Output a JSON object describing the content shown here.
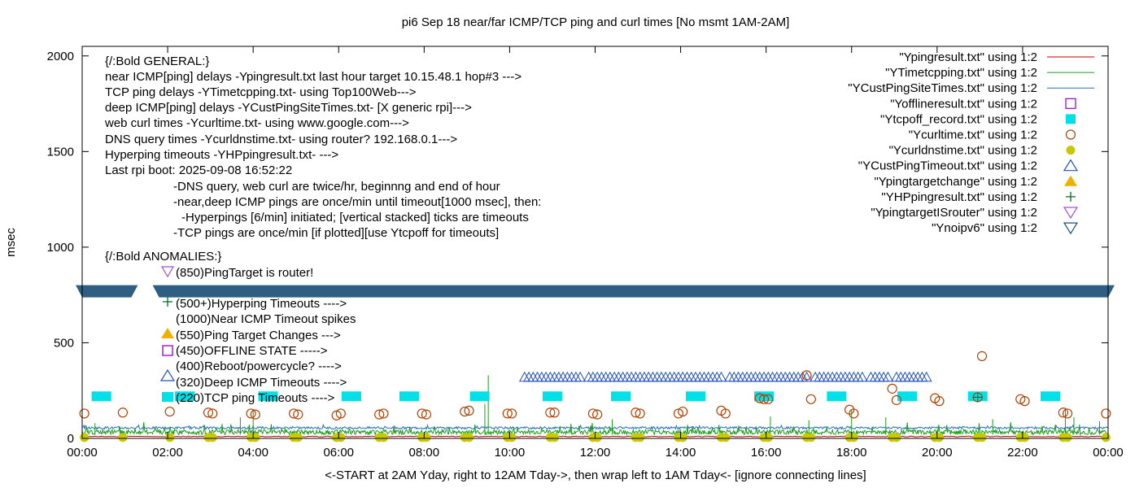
{
  "chart_data": {
    "type": "scatter",
    "title": "pi6 Sep 18  near/far ICMP/TCP ping and curl times [No msmt 1AM-2AM]",
    "xlabel": "<-START at 2AM Yday, right to 12AM Tday->, then wrap left to 1AM Tday<- [ignore connecting lines]",
    "ylabel": "msec",
    "xlim": [
      0,
      24
    ],
    "ylim": [
      0,
      2050
    ],
    "x_ticks": [
      "00:00",
      "02:00",
      "04:00",
      "06:00",
      "08:00",
      "10:00",
      "12:00",
      "14:00",
      "16:00",
      "18:00",
      "20:00",
      "22:00",
      "00:00"
    ],
    "y_ticks": [
      0,
      500,
      1000,
      1500,
      2000
    ],
    "grid": false,
    "legend_position": "top-right",
    "colors": {
      "ypingresult": "#c00000",
      "ytimetcpping": "#1a9e1a",
      "ycustpingsitetimes": "#1f6fc4",
      "yofflineresult": "#9400d3",
      "ytcpoff": "#00e0e8",
      "ycurltime": "#b24000",
      "ycurldnstime": "#c8c800",
      "ycustpingtimeout": "#2050c0",
      "ypingtargetchange": "#f0b000",
      "yhppingresult": "#007020",
      "ypingtargetisrouter": "#a050e0",
      "ynoipv6": "#1a4f80",
      "band": "#2e5f82"
    },
    "legend": [
      {
        "label": "\"Ypingresult.txt\" using 1:2",
        "marker": "line",
        "color_key": "ypingresult"
      },
      {
        "label": "\"YTimetcpping.txt\" using 1:2",
        "marker": "line",
        "color_key": "ytimetcpping"
      },
      {
        "label": "\"YCustPingSiteTimes.txt\" using 1:2",
        "marker": "line",
        "color_key": "ycustpingsitetimes"
      },
      {
        "label": "\"Yofflineresult.txt\" using 1:2",
        "marker": "open-square",
        "color_key": "yofflineresult"
      },
      {
        "label": "\"Ytcpoff_record.txt\" using 1:2",
        "marker": "filled-square",
        "color_key": "ytcpoff"
      },
      {
        "label": "\"Ycurltime.txt\" using 1:2",
        "marker": "open-circle",
        "color_key": "ycurltime"
      },
      {
        "label": "\"Ycurldnstime.txt\" using 1:2",
        "marker": "filled-circle",
        "color_key": "ycurldnstime"
      },
      {
        "label": "\"YCustPingTimeout.txt\" using 1:2",
        "marker": "open-triangle",
        "color_key": "ycustpingtimeout"
      },
      {
        "label": "\"Ypingtargetchange\" using 1:2",
        "marker": "filled-triangle",
        "color_key": "ypingtargetchange"
      },
      {
        "label": "\"YHPpingresult.txt\" using 1:2",
        "marker": "plus",
        "color_key": "yhppingresult"
      },
      {
        "label": "\"YpingtargetISrouter\" using 1:2",
        "marker": "open-down-triangle",
        "color_key": "ypingtargetisrouter"
      },
      {
        "label": "\"Ynoipv6\" using 1:2",
        "marker": "open-down-triangle",
        "color_key": "ynoipv6"
      }
    ],
    "annotations": [
      "{/:Bold GENERAL:}",
      "near ICMP[ping] delays -Ypingresult.txt last hour target 10.15.48.1 hop#3 --->",
      "TCP ping delays -YTimetcpping.txt- using Top100Web--->",
      "deep ICMP[ping] delays -YCustPingSiteTimes.txt- [X generic rpi]--->",
      "web curl times -Ycurltime.txt- using www.google.com--->",
      "DNS query times -Ycurldnstime.txt- using router? 192.168.0.1--->",
      "Hyperping timeouts -YHPpingresult.txt- --->",
      "Last rpi boot: 2025-09-08 16:52:22",
      "-DNS query, web curl are twice/hr, beginnng and end of hour",
      "-near,deep ICMP pings are once/min until timeout[1000 msec], then:",
      "-Hyperpings [6/min] initiated; [vertical stacked] ticks are timeouts",
      "-TCP pings are once/min [if plotted][use Ytcpoff for timeouts]",
      "{/:Bold ANOMALIES:}",
      "(850)PingTarget is router!",
      "(500+)Hyperping Timeouts ---->",
      "(1000)Near ICMP Timeout spikes",
      "(550)Ping Target Changes --->",
      "(450)OFFLINE STATE ----->",
      "(400)Reboot/powercycle? ---->",
      "(320)Deep ICMP Timeouts ---->",
      "(220)TCP ping Timeouts ---->"
    ],
    "ynoipv6": {
      "x_start": 0,
      "x_end": 24,
      "y": 780,
      "gap": [
        1.15,
        1.8
      ]
    },
    "ytcpoff": {
      "y": 220,
      "x": [
        0.45,
        2.4,
        4.35,
        6.3,
        7.65,
        9.3,
        11.0,
        12.6,
        14.35,
        15.95,
        17.65,
        19.3,
        20.95,
        22.65
      ]
    },
    "ycustpingtimeout": {
      "y": 320,
      "x_start": 10.35,
      "x_end": 19.75,
      "step": 0.1,
      "skip": [
        [
          11.7,
          11.8
        ],
        [
          15.0,
          15.1
        ],
        [
          17.0,
          17.1
        ],
        [
          18.3,
          18.4
        ],
        [
          18.9,
          19.05
        ]
      ]
    },
    "ycurltime": {
      "x": [
        0.05,
        0.95,
        2.05,
        2.95,
        3.05,
        3.95,
        4.05,
        4.95,
        5.05,
        5.95,
        6.05,
        6.95,
        7.05,
        7.95,
        8.05,
        8.95,
        9.05,
        9.95,
        10.05,
        10.95,
        11.05,
        11.95,
        12.05,
        12.95,
        13.05,
        13.95,
        14.05,
        14.95,
        15.05,
        15.85,
        15.95,
        16.05,
        16.95,
        17.05,
        17.95,
        18.05,
        18.95,
        19.05,
        19.95,
        20.05,
        20.95,
        21.05,
        21.95,
        22.05,
        22.95,
        23.05,
        23.95
      ],
      "y": [
        130,
        135,
        140,
        135,
        130,
        130,
        125,
        130,
        125,
        120,
        130,
        125,
        130,
        130,
        125,
        140,
        145,
        130,
        130,
        135,
        135,
        130,
        125,
        135,
        130,
        130,
        140,
        145,
        130,
        210,
        205,
        205,
        330,
        205,
        150,
        130,
        260,
        200,
        210,
        195,
        215,
        430,
        205,
        195,
        135,
        130,
        130
      ]
    },
    "ycurldnstime": {
      "x": [
        0.05,
        0.95,
        2.05,
        2.95,
        3.05,
        3.95,
        4.05,
        4.95,
        5.05,
        5.95,
        6.05,
        6.95,
        7.05,
        7.95,
        8.05,
        8.95,
        9.05,
        9.95,
        10.05,
        10.95,
        11.05,
        11.95,
        12.05,
        12.95,
        13.05,
        13.95,
        14.05,
        14.95,
        15.05,
        15.95,
        16.05,
        16.95,
        17.05,
        17.95,
        18.05,
        18.95,
        19.05,
        19.95,
        20.05,
        20.95,
        21.05,
        21.95,
        22.05,
        22.95,
        23.05,
        23.95
      ],
      "y": [
        5,
        5,
        5,
        5,
        5,
        5,
        5,
        5,
        5,
        5,
        5,
        5,
        5,
        5,
        5,
        5,
        5,
        5,
        5,
        5,
        5,
        5,
        5,
        5,
        5,
        5,
        5,
        5,
        5,
        5,
        5,
        5,
        5,
        5,
        5,
        5,
        5,
        5,
        5,
        5,
        5,
        5,
        5,
        5,
        5,
        5
      ]
    },
    "yhppingresult": {
      "x": [
        20.95
      ],
      "y": [
        215
      ]
    },
    "ypingtargetisrouter": {
      "x": [
        1.95
      ],
      "y": [
        850
      ]
    },
    "ycustpingsitetimes": {
      "y_base": 55
    },
    "ypingresult": {
      "y_base": 8
    },
    "ytimetcpping": {
      "y_base": 20,
      "spikes": [
        [
          9.5,
          330
        ],
        [
          9.42,
          180
        ],
        [
          4.0,
          150
        ],
        [
          3.7,
          110
        ],
        [
          12.4,
          100
        ],
        [
          16.1,
          115
        ],
        [
          17.0,
          95
        ],
        [
          18.0,
          150
        ],
        [
          18.8,
          110
        ],
        [
          21.3,
          100
        ],
        [
          23.0,
          160
        ],
        [
          23.2,
          110
        ],
        [
          23.8,
          90
        ],
        [
          0.3,
          80
        ]
      ]
    }
  }
}
